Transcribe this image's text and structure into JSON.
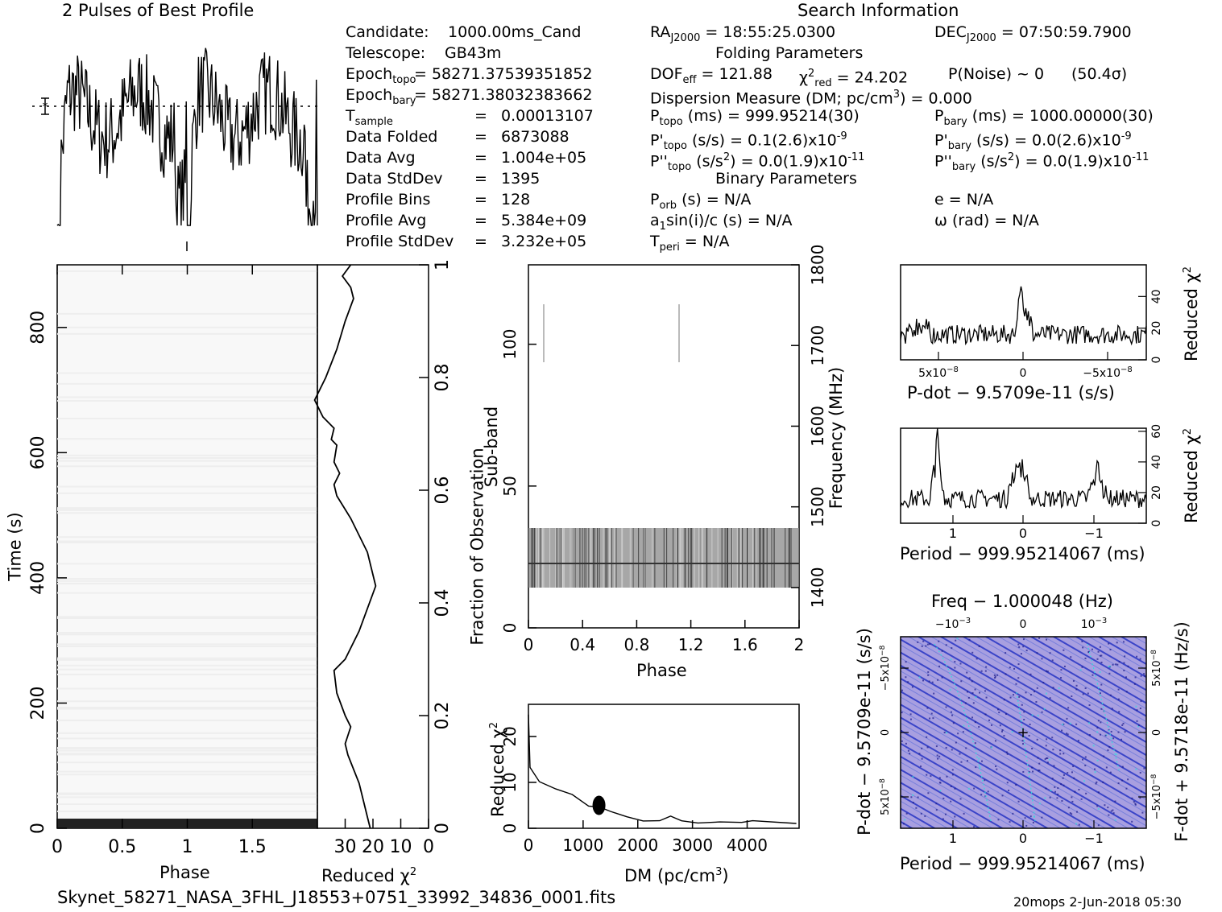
{
  "titles": {
    "profile": "2 Pulses of Best Profile",
    "search": "Search Information",
    "folding": "Folding Parameters",
    "binary": "Binary Parameters"
  },
  "info_left": [
    {
      "label": "Candidate:",
      "value": "1000.00ms_Cand"
    },
    {
      "label": "Telescope:",
      "value": "GB43m"
    },
    {
      "label": "Epoch",
      "sub": "topo",
      "value": "= 58271.37539351852"
    },
    {
      "label": "Epoch",
      "sub": "bary",
      "value": "= 58271.38032383662"
    },
    {
      "label": "T",
      "sub": "sample",
      "eq": "=",
      "value": "0.00013107"
    },
    {
      "label": "Data Folded",
      "eq": "=",
      "value": "6873088"
    },
    {
      "label": "Data Avg",
      "eq": "=",
      "value": "1.004e+05"
    },
    {
      "label": "Data StdDev",
      "eq": "=",
      "value": "1395"
    },
    {
      "label": "Profile Bins",
      "eq": "=",
      "value": "128"
    },
    {
      "label": "Profile Avg",
      "eq": "=",
      "value": "5.384e+09"
    },
    {
      "label": "Profile StdDev",
      "eq": "=",
      "value": "3.232e+05"
    }
  ],
  "info_mid": {
    "ra": "RA",
    "ra_sub": "J2000",
    "ra_val": "= 18:55:25.0300",
    "dof": "DOF",
    "dof_sub": "eff",
    "dof_val": "= 121.88",
    "chi": "χ",
    "chi_sup": "2",
    "chi_sub": "red",
    "chi_val": "= 24.202",
    "pnoise": "P(Noise) ~ 0",
    "sigma": "(50.4σ)",
    "dm_line": "Dispersion Measure (DM; pc/cm",
    "dm_sup": "3",
    "dm_end": ") = 0.000",
    "ptopo": "P",
    "ptopo_sub": "topo",
    "ptopo_val": "(ms) =  999.95214(30)",
    "pdtopo": "P'",
    "pdtopo_sub": "topo",
    "pdtopo_val": "(s/s) =  0.1(2.6)x10",
    "pdtopo_exp": "-9",
    "pddtopo": "P''",
    "pddtopo_sub": "topo",
    "pddtopo_val": "(s/s",
    "pddtopo_sup": "2",
    "pddtopo_end": ") = 0.0(1.9)x10",
    "pddtopo_exp": "-11",
    "porb": "P",
    "porb_sub": "orb",
    "porb_val": "(s) = N/A",
    "a1": "a",
    "a1_sub": "1",
    "a1_val": "sin(i)/c (s) = N/A",
    "tperi": "T",
    "tperi_sub": "peri",
    "tperi_val": "= N/A"
  },
  "info_right": {
    "dec": "DEC",
    "dec_sub": "J2000",
    "dec_val": "= 07:50:59.7900",
    "pbary": "P",
    "pbary_sub": "bary",
    "pbary_val": "(ms) =  1000.00000(30)",
    "pdbary": "P'",
    "pdbary_sub": "bary",
    "pdbary_val": "(s/s) = 0.0(2.6)x10",
    "pdbary_exp": "-9",
    "pddbary": "P''",
    "pddbary_sub": "bary",
    "pddbary_val": "(s/s",
    "pddbary_sup": "2",
    "pddbary_end": ") = 0.0(1.9)x10",
    "pddbary_exp": "-11",
    "ecc": "e = N/A",
    "omega": "ω (rad) = N/A"
  },
  "footer": {
    "filename": "Skynet_58271_NASA_3FHL_J18553+0751_33992_34836_0001.fits",
    "stamp": "20mops  2-Jun-2018 05:30"
  },
  "colors": {
    "ink": "#000000",
    "ppdot_bg": "#a89fe0",
    "ppdot_dark": "#3a44c8",
    "ppdot_hi": "#33dddd"
  },
  "chart_data": [
    {
      "name_printed": "2 Pulses of Best Profile",
      "type": "line",
      "title": "2 Pulses of Best Profile",
      "x": "phase 0-2 (two pulses)",
      "note": "noisy profile with dip near phase 1.0"
    },
    {
      "type": "heatmap",
      "xlabel": "Phase",
      "ylabel": "Time (s)",
      "xlim": [
        0,
        2
      ],
      "ylim": [
        0,
        900
      ],
      "xticks": [
        "0",
        "0.5",
        "1",
        "1.5"
      ],
      "yticks": [
        "0",
        "200",
        "400",
        "600",
        "800"
      ]
    },
    {
      "type": "line",
      "xlabel": "Reduced χ²",
      "ylabel": "Fraction of Observation",
      "xticks": [
        "30",
        "20",
        "10",
        "0"
      ],
      "yticks": [
        "0",
        "0.2",
        "0.4",
        "0.6",
        "0.8",
        "1"
      ],
      "points": [
        [
          21,
          0
        ],
        [
          22,
          0.02
        ],
        [
          25,
          0.08
        ],
        [
          29,
          0.13
        ],
        [
          30,
          0.15
        ],
        [
          28,
          0.18
        ],
        [
          30,
          0.2
        ],
        [
          33,
          0.24
        ],
        [
          34,
          0.28
        ],
        [
          30,
          0.3
        ],
        [
          25,
          0.35
        ],
        [
          19,
          0.43
        ],
        [
          22,
          0.49
        ],
        [
          28,
          0.55
        ],
        [
          33,
          0.59
        ],
        [
          34,
          0.61
        ],
        [
          32,
          0.63
        ],
        [
          34,
          0.65
        ],
        [
          33,
          0.68
        ],
        [
          35,
          0.69
        ],
        [
          34,
          0.71
        ],
        [
          38,
          0.73
        ],
        [
          41,
          0.76
        ],
        [
          37,
          0.8
        ],
        [
          33,
          0.85
        ],
        [
          30,
          0.9
        ],
        [
          27,
          0.94
        ],
        [
          28,
          0.96
        ],
        [
          31,
          0.98
        ],
        [
          28,
          1.0
        ]
      ]
    },
    {
      "type": "heatmap",
      "xlabel": "Phase",
      "ylabel": "Sub-band",
      "y2label": "Frequency (MHz)",
      "xticks": [
        "0",
        "0.4",
        "0.8",
        "1.2",
        "1.6",
        "2"
      ],
      "yticks": [
        "0",
        "50",
        "100"
      ],
      "y2ticks": [
        "1400",
        "1500",
        "1600",
        "1700",
        "1800"
      ],
      "signal_subbands": [
        14,
        35
      ]
    },
    {
      "type": "line",
      "xlabel": "DM (pc/cm³)",
      "ylabel": "Reduced χ²",
      "xticks": [
        "0",
        "1000",
        "2000",
        "3000",
        "4000"
      ],
      "yticks": [
        "0",
        "10",
        "20"
      ],
      "points": [
        [
          0,
          25
        ],
        [
          30,
          13
        ],
        [
          200,
          10
        ],
        [
          500,
          8.5
        ],
        [
          800,
          7
        ],
        [
          1100,
          5
        ],
        [
          1300,
          5
        ],
        [
          1500,
          3.5
        ],
        [
          1800,
          2.5
        ],
        [
          2100,
          1.5
        ],
        [
          2400,
          1.5
        ],
        [
          2600,
          2.5
        ],
        [
          2800,
          2
        ],
        [
          3100,
          1
        ],
        [
          3500,
          1
        ],
        [
          3900,
          1
        ],
        [
          4100,
          1.5
        ],
        [
          4900,
          1
        ]
      ]
    },
    {
      "type": "line",
      "xlabel": "P-dot − 9.5709e-11 (s/s)",
      "ylabel": "Reduced χ²",
      "xticks": [
        "5x10",
        "0",
        "−5x10"
      ],
      "xtick_exp": "−8",
      "yticks": [
        "0",
        "20",
        "40"
      ]
    },
    {
      "type": "line",
      "xlabel": "Period − 999.95214067 (ms)",
      "ylabel": "Reduced χ²",
      "xticks": [
        "1",
        "0",
        "−1"
      ],
      "yticks": [
        "0",
        "20",
        "40",
        "60"
      ]
    },
    {
      "type": "heatmap",
      "title": "Freq − 1.000048 (Hz)",
      "xlabel": "Period − 999.95214067 (ms)",
      "ylabel": "P-dot − 9.5709e-11 (s/s)",
      "y2label": "F-dot + 9.5718e-11 (Hz/s)",
      "xticks": [
        "1",
        "0",
        "−1"
      ],
      "x2ticks": [
        "−10",
        "0",
        "10"
      ],
      "x2tick_exp": "−3",
      "yticks": [
        "−5x10",
        "0",
        "5x10"
      ],
      "ytick_exp": "−8",
      "y2ticks": [
        "5x10",
        "0",
        "−5x10"
      ],
      "y2tick_exp": "−8"
    }
  ]
}
